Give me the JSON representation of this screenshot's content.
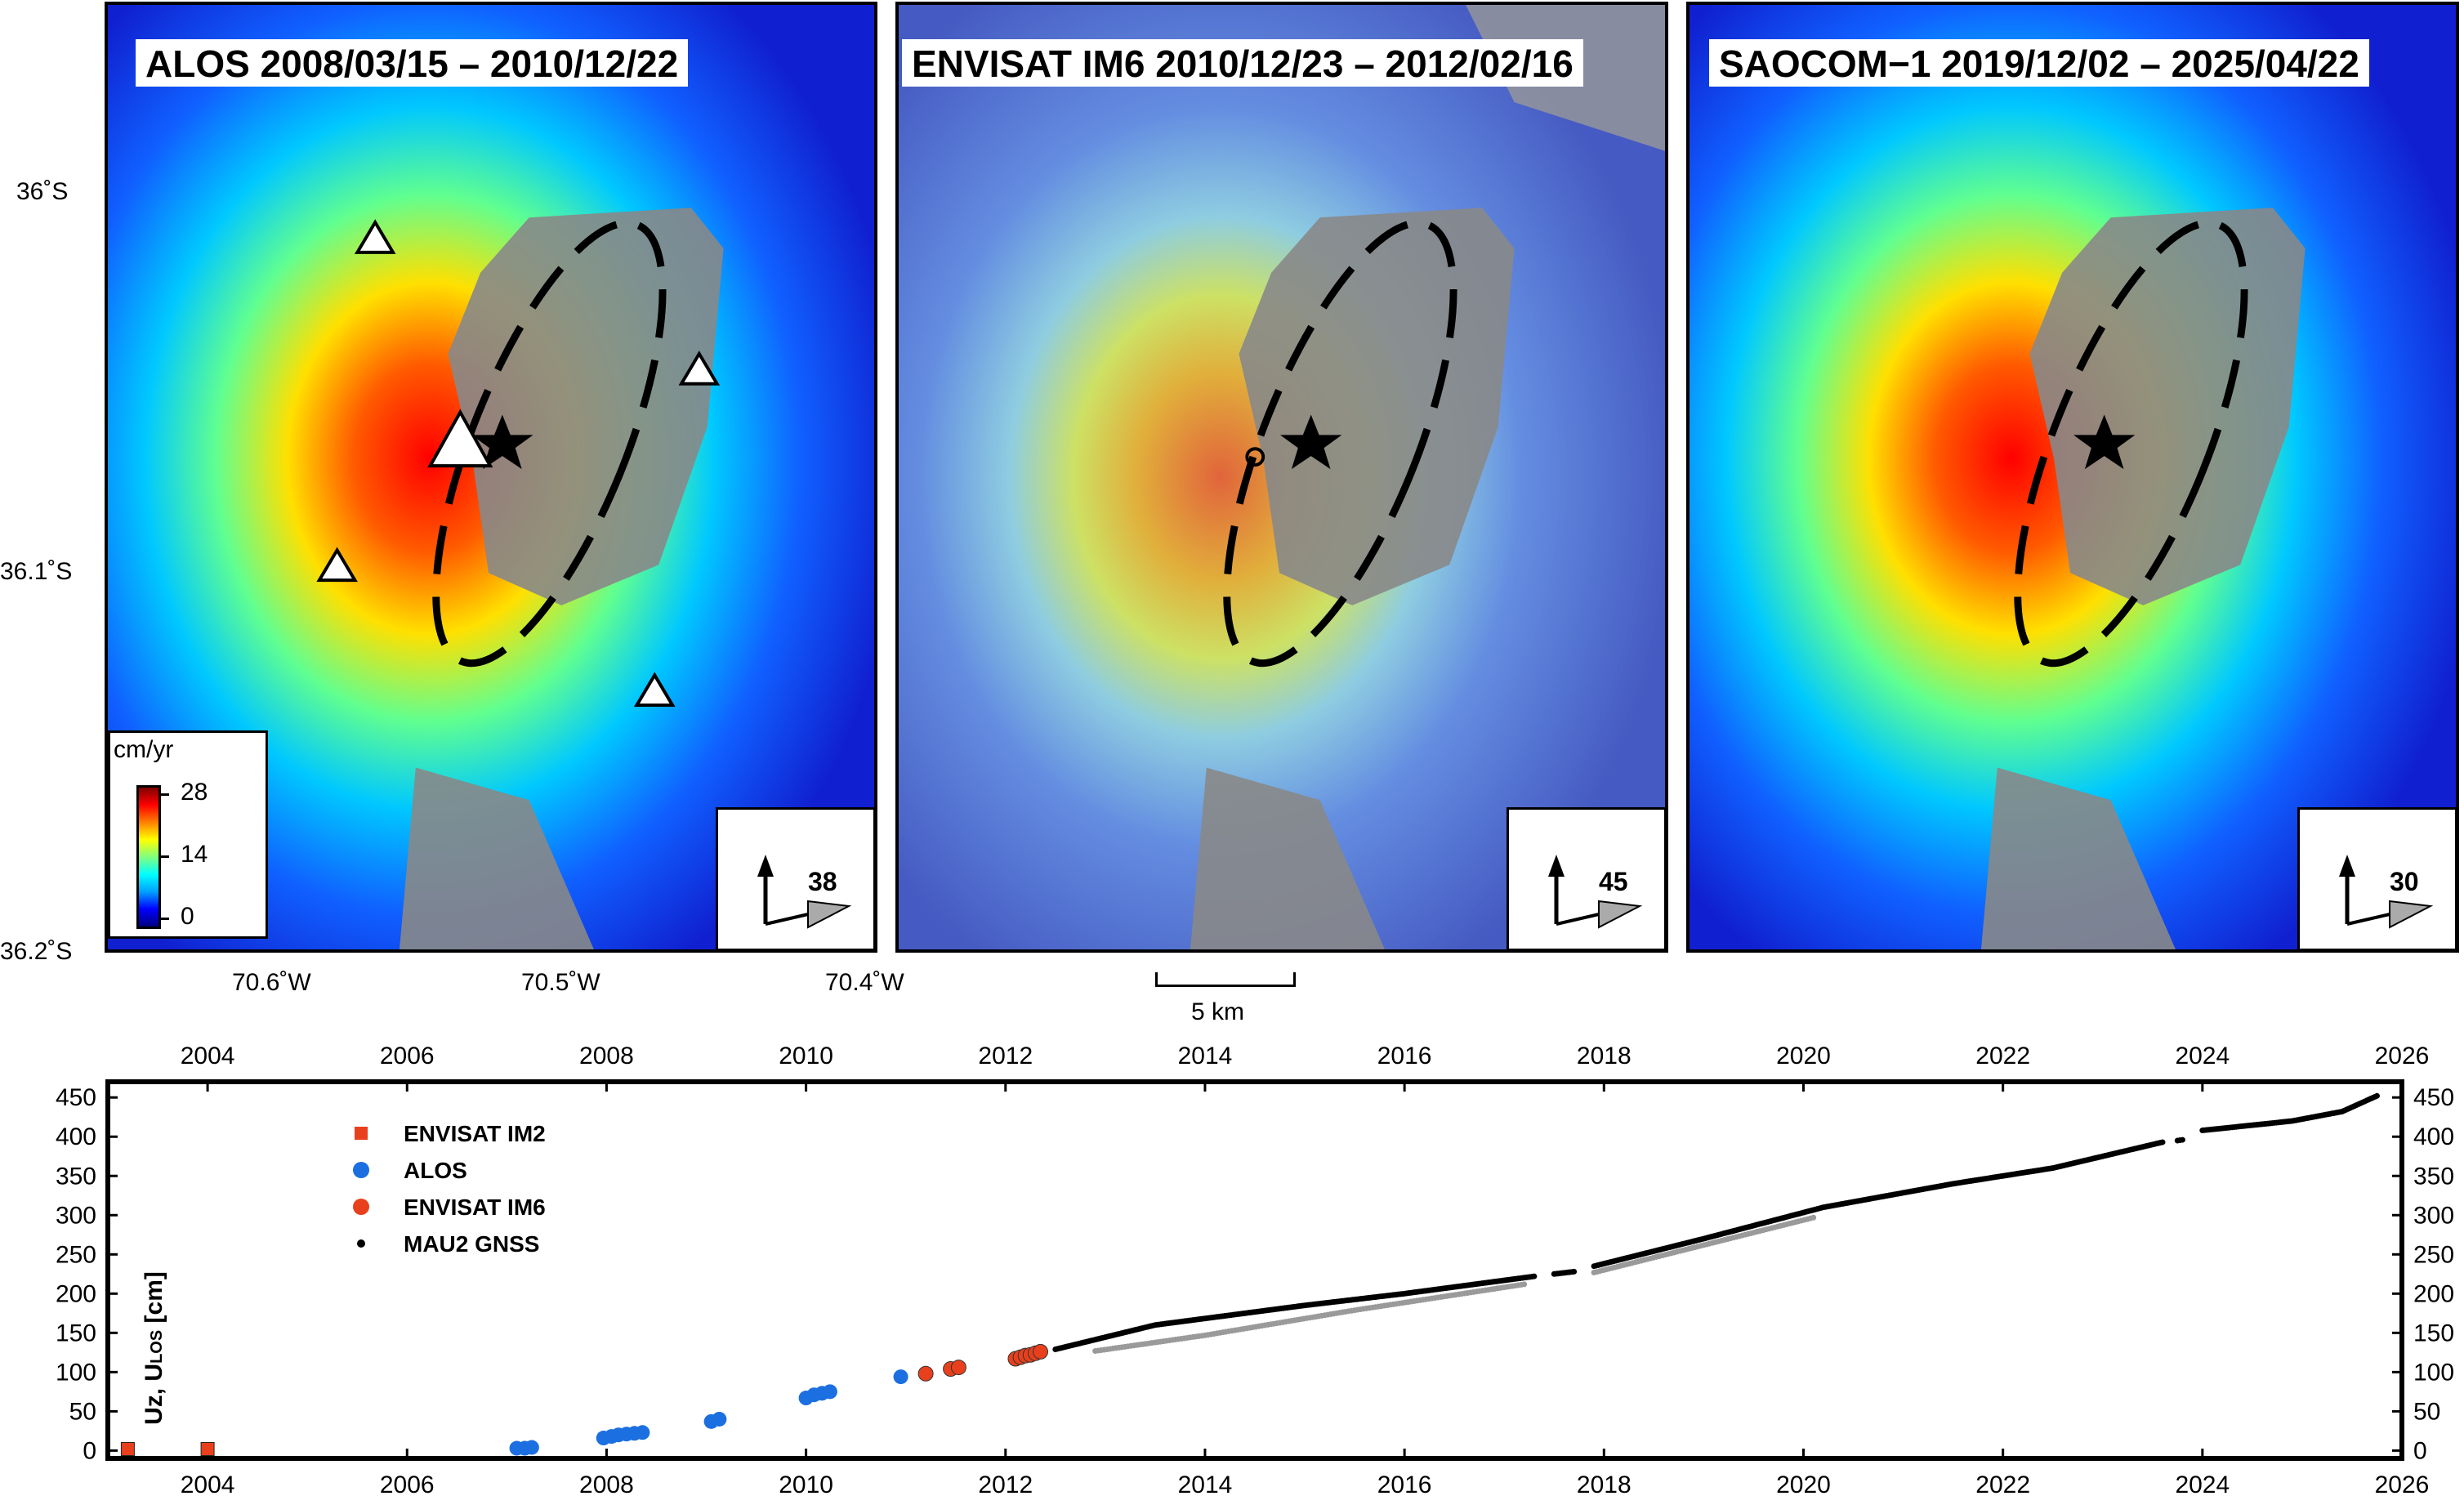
{
  "maps": {
    "panels": [
      {
        "title": "ALOS 2008/03/15 – 2010/12/22",
        "incidence": "38",
        "heading_icon": "look-direction-arrows-icon"
      },
      {
        "title": "ENVISAT IM6 2010/12/23 – 2012/02/16",
        "incidence": "45",
        "heading_icon": "look-direction-arrows-icon"
      },
      {
        "title": "SAOCOM−1 2019/12/02 – 2025/04/22",
        "incidence": "30",
        "heading_icon": "look-direction-arrows-icon"
      }
    ],
    "latitude_labels": [
      "36˚S",
      "36.1˚S",
      "36.2˚S"
    ],
    "longitude_labels": [
      "70.6˚W",
      "70.5˚W",
      "70.4˚W"
    ],
    "scale_label": "5 km",
    "colorbar": {
      "unit": "cm/yr",
      "ticks": [
        "28",
        "14",
        "0"
      ]
    }
  },
  "colors": {
    "envisat_im2": "#e8401c",
    "alos": "#1c6fe0",
    "envisat_im6": "#e8401c",
    "gnss": "#000000",
    "saocom_gray": "#9a9a9a"
  },
  "chart_data": {
    "type": "scatter",
    "title": "",
    "xlabel": "",
    "ylabel": "Uz, U",
    "ylabel_sub": "LOS",
    "ylabel_unit": " [cm]",
    "xlim": [
      2003.0,
      2026.0
    ],
    "ylim": [
      -10,
      470
    ],
    "x_ticks": [
      "2004",
      "2006",
      "2008",
      "2010",
      "2012",
      "2014",
      "2016",
      "2018",
      "2020",
      "2022",
      "2024",
      "2026"
    ],
    "y_ticks": [
      "0",
      "50",
      "100",
      "150",
      "200",
      "250",
      "300",
      "350",
      "400",
      "450"
    ],
    "legend": [
      "ENVISAT IM2",
      "ALOS",
      "ENVISAT IM6",
      "MAU2 GNSS"
    ],
    "series": [
      {
        "name": "ENVISAT IM2",
        "marker": "square",
        "x": [
          2003.2,
          2004.0
        ],
        "y": [
          2,
          2
        ]
      },
      {
        "name": "ALOS",
        "marker": "circle",
        "x": [
          2007.1,
          2007.18,
          2007.25,
          2007.97,
          2008.05,
          2008.12,
          2008.2,
          2008.28,
          2008.36,
          2009.05,
          2009.13,
          2010.0,
          2010.08,
          2010.16,
          2010.24,
          2010.95
        ],
        "y": [
          3,
          3,
          4,
          16,
          18,
          20,
          21,
          22,
          23,
          37,
          40,
          67,
          71,
          73,
          75,
          94
        ]
      },
      {
        "name": "ENVISAT IM6",
        "marker": "circle",
        "x": [
          2011.2,
          2011.45,
          2011.53,
          2012.1,
          2012.15,
          2012.2,
          2012.25,
          2012.3,
          2012.35
        ],
        "y": [
          98,
          104,
          106,
          117,
          119,
          121,
          122,
          124,
          126
        ]
      },
      {
        "name": "MAU2 GNSS",
        "marker": "dot",
        "segments": [
          {
            "x": [
              2012.5,
              2013.5,
              2015.0,
              2016.0,
              2017.3
            ],
            "y": [
              129,
              160,
              185,
              200,
              222
            ]
          },
          {
            "x": [
              2017.5,
              2017.7
            ],
            "y": [
              225,
              228
            ]
          },
          {
            "x": [
              2017.9,
              2019.0,
              2020.2,
              2021.5,
              2022.5,
              2023.6
            ],
            "y": [
              235,
              270,
              310,
              340,
              360,
              393
            ]
          },
          {
            "x": [
              2023.75,
              2023.8
            ],
            "y": [
              395,
              396
            ]
          },
          {
            "x": [
              2024.0,
              2024.9,
              2025.4,
              2025.75
            ],
            "y": [
              408,
              420,
              432,
              452
            ]
          }
        ]
      },
      {
        "name": "SAOCOM-1",
        "marker": "dot",
        "legend": false,
        "segments": [
          {
            "x": [
              2012.9,
              2014.0,
              2015.5,
              2017.2
            ],
            "y": [
              130,
              150,
              182,
              215
            ]
          },
          {
            "x": [
              2017.9,
              2019.0,
              2020.1
            ],
            "y": [
              230,
              265,
              300
            ]
          }
        ]
      }
    ]
  }
}
